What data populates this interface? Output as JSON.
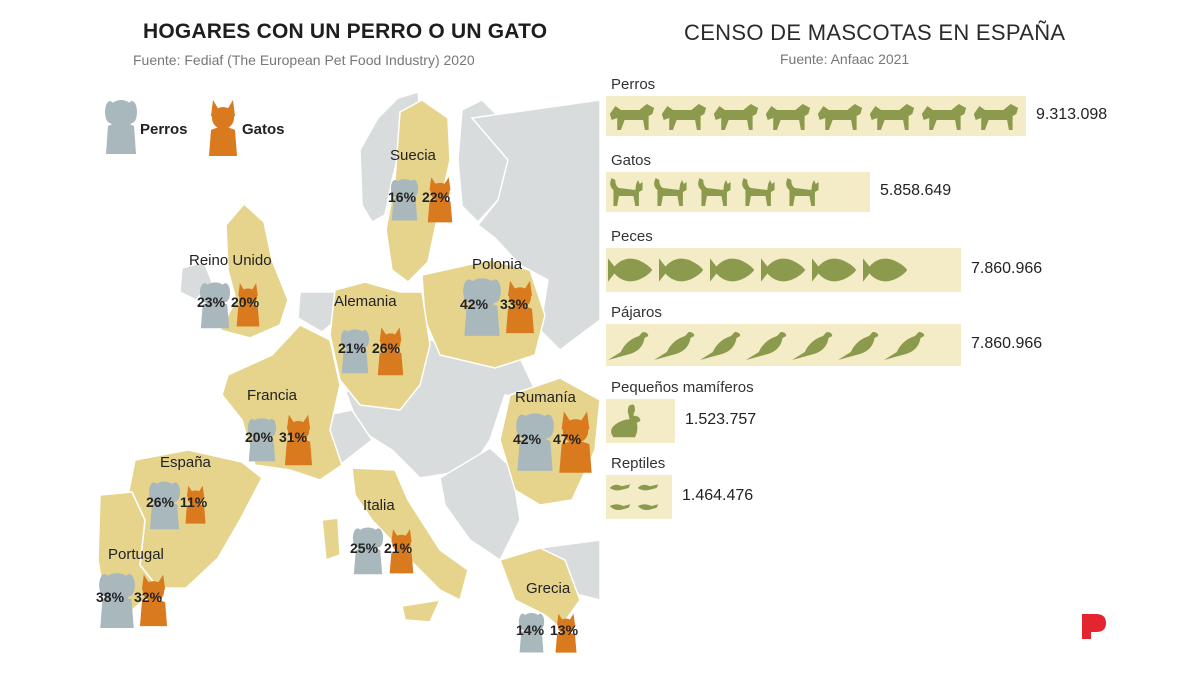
{
  "map_panel": {
    "title": "HOGARES CON UN PERRO O UN  GATO",
    "source": "Fuente: Fediaf (The European Pet Food Industry) 2020",
    "legend": {
      "dogs": "Perros",
      "cats": "Gatos",
      "dog_color": "#a9b8bd",
      "cat_color": "#d97a1e"
    },
    "map_colors": {
      "highlight": "#e6d48d",
      "other": "#d9dcdc",
      "border": "#ffffff"
    }
  },
  "census_panel": {
    "title": "CENSO DE MASCOTAS EN ESPAÑA",
    "source": "Fuente: Anfaac 2021",
    "bar_color": "#f3ecc6",
    "icon_color": "#8c9a4e"
  },
  "chart_data": [
    {
      "type": "bar",
      "title": "HOGARES CON UN PERRO O UN  GATO",
      "subtitle": "Fuente: Fediaf (The European Pet Food Industry) 2020",
      "categories": [
        "Suecia",
        "Reino Unido",
        "Polonia",
        "Alemania",
        "Francia",
        "Rumanía",
        "España",
        "Italia",
        "Portugal",
        "Grecia"
      ],
      "series": [
        {
          "name": "Perros",
          "values": [
            16,
            23,
            42,
            21,
            20,
            42,
            26,
            25,
            38,
            14
          ],
          "labels": [
            "16%",
            "23%",
            "42%",
            "21%",
            "20%",
            "42%",
            "26%",
            "25%",
            "38%",
            "14%"
          ]
        },
        {
          "name": "Gatos",
          "values": [
            22,
            20,
            33,
            26,
            31,
            47,
            11,
            21,
            32,
            13
          ],
          "labels": [
            "22%",
            "20%",
            "33%",
            "26%",
            "31%",
            "47%",
            "11%",
            "21%",
            "32%",
            "13%"
          ]
        }
      ],
      "unit": "%"
    },
    {
      "type": "bar",
      "title": "CENSO DE MASCOTAS EN ESPAÑA",
      "subtitle": "Fuente: Anfaac 2021",
      "categories": [
        "Perros",
        "Gatos",
        "Peces",
        "Pájaros",
        "Pequeños mamíferos",
        "Reptiles"
      ],
      "icons": [
        "dog-icon",
        "cat-icon",
        "fish-icon",
        "bird-icon",
        "rabbit-icon",
        "lizard-icon"
      ],
      "values": [
        9313098,
        5858649,
        7860966,
        7860966,
        1523757,
        1464476
      ],
      "value_labels": [
        "9.313.098",
        "5.858.649",
        "7.860.966",
        "7.860.966",
        "1.523.757",
        "1.464.476"
      ]
    }
  ]
}
